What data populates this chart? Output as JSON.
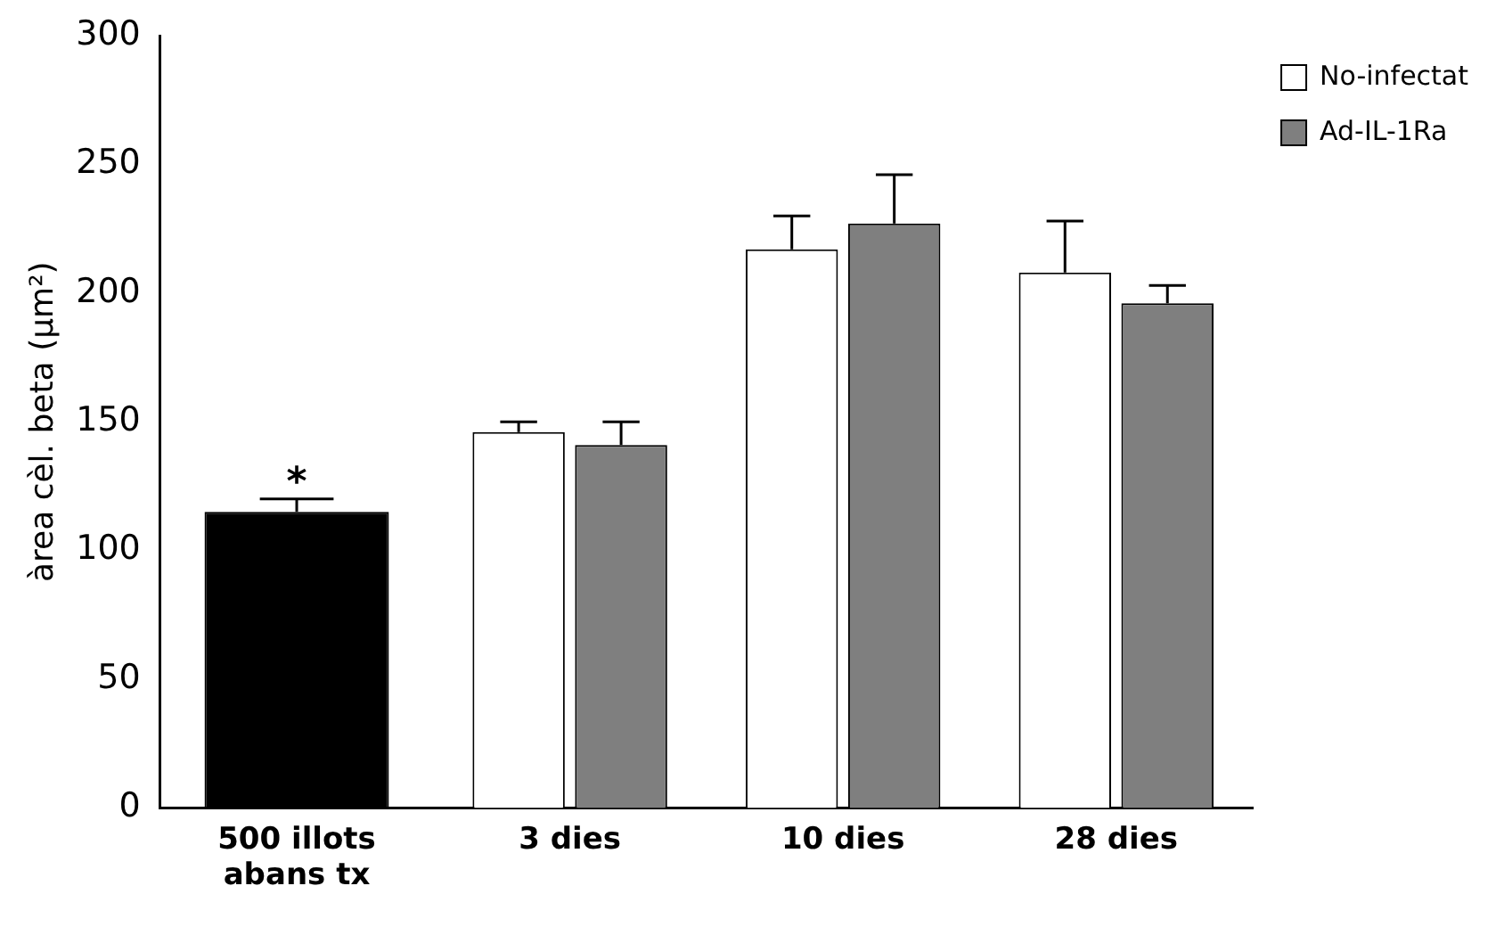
{
  "chart_data": {
    "type": "bar",
    "ylabel": "àrea cèl. beta (μm²)",
    "categories": [
      "500 illots abans tx",
      "3 dies",
      "10 dies",
      "28 dies"
    ],
    "series": [
      {
        "color": "#000000",
        "values": [
          115,
          null,
          null,
          null
        ],
        "errors": [
          [
            115,
            120
          ],
          null,
          null,
          null
        ]
      },
      {
        "name": "No-infectat",
        "color": "#ffffff",
        "values": [
          null,
          146,
          217,
          208
        ],
        "errors": [
          null,
          [
            146,
            150
          ],
          [
            217,
            230
          ],
          [
            208,
            228
          ]
        ]
      },
      {
        "name": "Ad-IL-1Ra",
        "color": "#7f7f7f",
        "values": [
          null,
          141,
          227,
          196
        ],
        "errors": [
          null,
          [
            141,
            150
          ],
          [
            227,
            246
          ],
          [
            196,
            203
          ]
        ]
      }
    ],
    "ylim": [
      0,
      300
    ],
    "yticks": [
      0,
      50,
      100,
      150,
      200,
      250,
      300
    ],
    "annotations": [
      "*"
    ],
    "grid": false,
    "legend": "top right"
  }
}
